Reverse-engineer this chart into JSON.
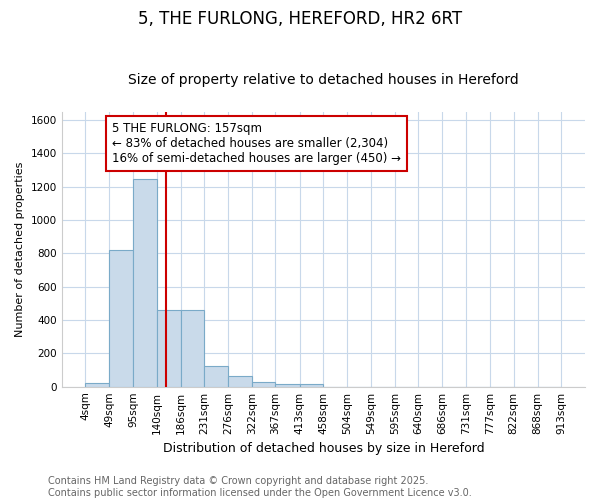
{
  "title": "5, THE FURLONG, HEREFORD, HR2 6RT",
  "subtitle": "Size of property relative to detached houses in Hereford",
  "xlabel": "Distribution of detached houses by size in Hereford",
  "ylabel": "Number of detached properties",
  "bin_edges": [
    4,
    49,
    95,
    140,
    186,
    231,
    276,
    322,
    367,
    413,
    458,
    504,
    549,
    595,
    640,
    686,
    731,
    777,
    822,
    868,
    913
  ],
  "bar_heights": [
    25,
    820,
    1245,
    460,
    460,
    125,
    62,
    28,
    18,
    18,
    0,
    0,
    0,
    0,
    0,
    0,
    0,
    0,
    0,
    0
  ],
  "bar_color": "#c9daea",
  "bar_edgecolor": "#7aaac8",
  "vline_x": 157,
  "vline_color": "#cc0000",
  "annotation_text": "5 THE FURLONG: 157sqm\n← 83% of detached houses are smaller (2,304)\n16% of semi-detached houses are larger (450) →",
  "annotation_box_color": "#ffffff",
  "annotation_box_edgecolor": "#cc0000",
  "ylim": [
    0,
    1650
  ],
  "yticks": [
    0,
    200,
    400,
    600,
    800,
    1000,
    1200,
    1400,
    1600
  ],
  "plot_bg_color": "#ffffff",
  "fig_bg_color": "#ffffff",
  "grid_color": "#c8d8ea",
  "footer_text": "Contains HM Land Registry data © Crown copyright and database right 2025.\nContains public sector information licensed under the Open Government Licence v3.0.",
  "title_fontsize": 12,
  "subtitle_fontsize": 10,
  "xlabel_fontsize": 9,
  "ylabel_fontsize": 8,
  "tick_fontsize": 7.5,
  "annotation_fontsize": 8.5,
  "footer_fontsize": 7
}
